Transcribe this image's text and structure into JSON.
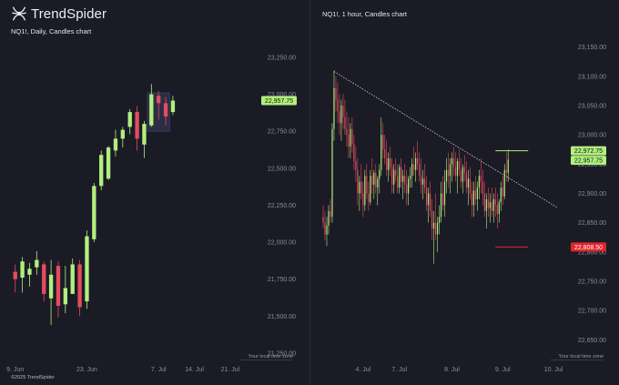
{
  "brand": {
    "name": "TrendSpider",
    "logo_icon": "trendspider-spider-logo"
  },
  "footer": {
    "copyright": "©2025 TrendSpider"
  },
  "colors": {
    "background": "#1b1b26",
    "bull": "#b2ef7e",
    "bear": "#e34d5e",
    "badge_green": "#b2ef7e",
    "badge_red": "#e0262b",
    "trendline": "#d0d0d8",
    "selection_box": "#3a3d5c"
  },
  "chart_data": [
    {
      "type": "candlestick",
      "title": "NQ1!, Daily, Candles chart",
      "timezone_label": "Your local time zone",
      "y_ticks": [
        "23,250.00",
        "23,000.00",
        "22,750.00",
        "22,500.00",
        "22,250.00",
        "22,000.00",
        "21,750.00",
        "21,500.00",
        "21,250.00"
      ],
      "y_tick_values": [
        23250,
        23000,
        22750,
        22500,
        22250,
        22000,
        21750,
        21500,
        21250
      ],
      "ylim": [
        21225,
        23330
      ],
      "x_ticks": [
        "9. Jun",
        "23. Jun",
        "7. Jul",
        "14. Jul",
        "21. Jul"
      ],
      "x_tick_index": [
        0,
        10,
        20,
        25,
        30
      ],
      "xlim": [
        -0.6,
        34.2
      ],
      "last_price_label": "22,957.75",
      "last_price": 22957.75,
      "selection_range": [
        19,
        21
      ],
      "candles": [
        {
          "o": 21800,
          "h": 21850,
          "l": 21660,
          "c": 21750
        },
        {
          "o": 21760,
          "h": 21900,
          "l": 21660,
          "c": 21870
        },
        {
          "o": 21780,
          "h": 21860,
          "l": 21700,
          "c": 21820
        },
        {
          "o": 21830,
          "h": 21940,
          "l": 21780,
          "c": 21880
        },
        {
          "o": 21850,
          "h": 21870,
          "l": 21600,
          "c": 21650
        },
        {
          "o": 21620,
          "h": 21880,
          "l": 21440,
          "c": 21780
        },
        {
          "o": 21840,
          "h": 21870,
          "l": 21490,
          "c": 21570
        },
        {
          "o": 21580,
          "h": 21840,
          "l": 21520,
          "c": 21690
        },
        {
          "o": 21650,
          "h": 21890,
          "l": 21650,
          "c": 21850
        },
        {
          "o": 21850,
          "h": 21880,
          "l": 21500,
          "c": 21560
        },
        {
          "o": 21600,
          "h": 22080,
          "l": 21550,
          "c": 22040
        },
        {
          "o": 22020,
          "h": 22400,
          "l": 22000,
          "c": 22380
        },
        {
          "o": 22380,
          "h": 22620,
          "l": 22350,
          "c": 22590
        },
        {
          "o": 22430,
          "h": 22650,
          "l": 22420,
          "c": 22640
        },
        {
          "o": 22620,
          "h": 22760,
          "l": 22580,
          "c": 22700
        },
        {
          "o": 22700,
          "h": 22780,
          "l": 22640,
          "c": 22760
        },
        {
          "o": 22780,
          "h": 22900,
          "l": 22730,
          "c": 22880
        },
        {
          "o": 22880,
          "h": 22920,
          "l": 22620,
          "c": 22700
        },
        {
          "o": 22660,
          "h": 22820,
          "l": 22570,
          "c": 22800
        },
        {
          "o": 22790,
          "h": 23070,
          "l": 22780,
          "c": 23000
        },
        {
          "o": 22990,
          "h": 23020,
          "l": 22830,
          "c": 22940
        },
        {
          "o": 22940,
          "h": 22980,
          "l": 22790,
          "c": 22850
        },
        {
          "o": 22880,
          "h": 22990,
          "l": 22860,
          "c": 22957.75
        }
      ]
    },
    {
      "type": "candlestick",
      "title": "NQ1!, 1 hour, Candles chart",
      "timezone_label": "Your local time zone",
      "y_ticks": [
        "23,150.00",
        "23,100.00",
        "23,050.00",
        "23,000.00",
        "22,950.00",
        "22,900.00",
        "22,850.00",
        "22,800.00",
        "22,750.00",
        "22,700.00",
        "22,650.00"
      ],
      "y_tick_values": [
        23150,
        23100,
        23050,
        23000,
        22950,
        22900,
        22850,
        22800,
        22750,
        22700,
        22650
      ],
      "ylim": [
        22632,
        23168
      ],
      "x_ticks": [
        "4. Jul",
        "7. Jul",
        "8. Jul",
        "9. Jul",
        "10. Jul"
      ],
      "x_tick_index": [
        22,
        42,
        71,
        99,
        127
      ],
      "xlim": [
        -0.5,
        135
      ],
      "price_labels": [
        {
          "label": "22,972.75",
          "value": 22972.75,
          "color": "badge_green"
        },
        {
          "label": "22,957.75",
          "value": 22957.75,
          "color": "badge_green"
        },
        {
          "label": "22,808.50",
          "value": 22808.5,
          "color": "badge_red"
        }
      ],
      "levels": [
        {
          "value": 22972.75,
          "from_index": 95,
          "to_index": 113,
          "color": "badge_green"
        },
        {
          "value": 22808.5,
          "from_index": 95,
          "to_index": 113,
          "color": "badge_red"
        }
      ],
      "trendline": {
        "from": [
          6,
          23108
        ],
        "to": [
          129,
          22876
        ]
      },
      "candles": [
        {
          "o": 22860,
          "h": 22880,
          "l": 22840,
          "c": 22850
        },
        {
          "o": 22850,
          "h": 22870,
          "l": 22820,
          "c": 22830
        },
        {
          "o": 22830,
          "h": 22860,
          "l": 22810,
          "c": 22845
        },
        {
          "o": 22845,
          "h": 22880,
          "l": 22830,
          "c": 22870
        },
        {
          "o": 22870,
          "h": 22890,
          "l": 22850,
          "c": 22860
        },
        {
          "o": 22860,
          "h": 23020,
          "l": 22850,
          "c": 23010
        },
        {
          "o": 23010,
          "h": 23110,
          "l": 22990,
          "c": 23080
        },
        {
          "o": 23080,
          "h": 23100,
          "l": 23040,
          "c": 23060
        },
        {
          "o": 23060,
          "h": 23090,
          "l": 23020,
          "c": 23040
        },
        {
          "o": 23040,
          "h": 23070,
          "l": 23000,
          "c": 23020
        },
        {
          "o": 23020,
          "h": 23060,
          "l": 22990,
          "c": 23050
        },
        {
          "o": 23050,
          "h": 23070,
          "l": 23010,
          "c": 23030
        },
        {
          "o": 23030,
          "h": 23060,
          "l": 23000,
          "c": 23010
        },
        {
          "o": 23010,
          "h": 23040,
          "l": 22980,
          "c": 23000
        },
        {
          "o": 23000,
          "h": 23030,
          "l": 22960,
          "c": 22980
        },
        {
          "o": 22980,
          "h": 23020,
          "l": 22960,
          "c": 23010
        },
        {
          "o": 23010,
          "h": 23030,
          "l": 22970,
          "c": 22985
        },
        {
          "o": 22985,
          "h": 23000,
          "l": 22940,
          "c": 22955
        },
        {
          "o": 22955,
          "h": 22980,
          "l": 22920,
          "c": 22940
        },
        {
          "o": 22940,
          "h": 22960,
          "l": 22880,
          "c": 22900
        },
        {
          "o": 22900,
          "h": 22930,
          "l": 22870,
          "c": 22920
        },
        {
          "o": 22920,
          "h": 22950,
          "l": 22890,
          "c": 22900
        },
        {
          "o": 22900,
          "h": 22920,
          "l": 22860,
          "c": 22880
        },
        {
          "o": 22880,
          "h": 22940,
          "l": 22870,
          "c": 22930
        },
        {
          "o": 22930,
          "h": 22950,
          "l": 22890,
          "c": 22900
        },
        {
          "o": 22900,
          "h": 22920,
          "l": 22870,
          "c": 22885
        },
        {
          "o": 22885,
          "h": 22940,
          "l": 22880,
          "c": 22930
        },
        {
          "o": 22930,
          "h": 22960,
          "l": 22900,
          "c": 22915
        },
        {
          "o": 22915,
          "h": 22940,
          "l": 22890,
          "c": 22935
        },
        {
          "o": 22935,
          "h": 22950,
          "l": 22900,
          "c": 22910
        },
        {
          "o": 22910,
          "h": 22930,
          "l": 22880,
          "c": 22925
        },
        {
          "o": 22925,
          "h": 22950,
          "l": 22900,
          "c": 22940
        },
        {
          "o": 22940,
          "h": 23030,
          "l": 22930,
          "c": 23000
        },
        {
          "o": 23000,
          "h": 23020,
          "l": 22960,
          "c": 22975
        },
        {
          "o": 22975,
          "h": 23000,
          "l": 22950,
          "c": 22960
        },
        {
          "o": 22960,
          "h": 22990,
          "l": 22930,
          "c": 22940
        },
        {
          "o": 22940,
          "h": 22970,
          "l": 22920,
          "c": 22960
        },
        {
          "o": 22960,
          "h": 22980,
          "l": 22930,
          "c": 22945
        },
        {
          "o": 22945,
          "h": 22960,
          "l": 22900,
          "c": 22915
        },
        {
          "o": 22915,
          "h": 22950,
          "l": 22900,
          "c": 22940
        },
        {
          "o": 22940,
          "h": 22960,
          "l": 22920,
          "c": 22930
        },
        {
          "o": 22930,
          "h": 22950,
          "l": 22900,
          "c": 22910
        },
        {
          "o": 22910,
          "h": 22950,
          "l": 22900,
          "c": 22945
        },
        {
          "o": 22945,
          "h": 22960,
          "l": 22910,
          "c": 22920
        },
        {
          "o": 22920,
          "h": 22940,
          "l": 22890,
          "c": 22930
        },
        {
          "o": 22930,
          "h": 22950,
          "l": 22900,
          "c": 22915
        },
        {
          "o": 22915,
          "h": 22940,
          "l": 22880,
          "c": 22900
        },
        {
          "o": 22900,
          "h": 22930,
          "l": 22880,
          "c": 22925
        },
        {
          "o": 22925,
          "h": 22945,
          "l": 22910,
          "c": 22930
        },
        {
          "o": 22930,
          "h": 22960,
          "l": 22910,
          "c": 22950
        },
        {
          "o": 22950,
          "h": 22980,
          "l": 22930,
          "c": 22940
        },
        {
          "o": 22940,
          "h": 22970,
          "l": 22920,
          "c": 22960
        },
        {
          "o": 22960,
          "h": 22990,
          "l": 22940,
          "c": 22950
        },
        {
          "o": 22950,
          "h": 22970,
          "l": 22920,
          "c": 22930
        },
        {
          "o": 22930,
          "h": 22960,
          "l": 22900,
          "c": 22915
        },
        {
          "o": 22915,
          "h": 22940,
          "l": 22890,
          "c": 22925
        },
        {
          "o": 22925,
          "h": 22950,
          "l": 22900,
          "c": 22910
        },
        {
          "o": 22910,
          "h": 22930,
          "l": 22870,
          "c": 22880
        },
        {
          "o": 22880,
          "h": 22910,
          "l": 22850,
          "c": 22900
        },
        {
          "o": 22900,
          "h": 22920,
          "l": 22860,
          "c": 22870
        },
        {
          "o": 22870,
          "h": 22890,
          "l": 22820,
          "c": 22840
        },
        {
          "o": 22840,
          "h": 22870,
          "l": 22780,
          "c": 22850
        },
        {
          "o": 22850,
          "h": 22900,
          "l": 22820,
          "c": 22830
        },
        {
          "o": 22830,
          "h": 22860,
          "l": 22800,
          "c": 22850
        },
        {
          "o": 22850,
          "h": 22880,
          "l": 22830,
          "c": 22860
        },
        {
          "o": 22860,
          "h": 22920,
          "l": 22850,
          "c": 22900
        },
        {
          "o": 22900,
          "h": 22930,
          "l": 22870,
          "c": 22880
        },
        {
          "o": 22880,
          "h": 22940,
          "l": 22860,
          "c": 22920
        },
        {
          "o": 22920,
          "h": 22960,
          "l": 22900,
          "c": 22940
        },
        {
          "o": 22940,
          "h": 22970,
          "l": 22910,
          "c": 22930
        },
        {
          "o": 22930,
          "h": 22960,
          "l": 22900,
          "c": 22950
        },
        {
          "o": 22950,
          "h": 22970,
          "l": 22920,
          "c": 22960
        },
        {
          "o": 22960,
          "h": 22980,
          "l": 22930,
          "c": 22945
        },
        {
          "o": 22945,
          "h": 22970,
          "l": 22920,
          "c": 22930
        },
        {
          "o": 22930,
          "h": 22960,
          "l": 22900,
          "c": 22955
        },
        {
          "o": 22955,
          "h": 22975,
          "l": 22930,
          "c": 22940
        },
        {
          "o": 22940,
          "h": 22960,
          "l": 22910,
          "c": 22920
        },
        {
          "o": 22920,
          "h": 22950,
          "l": 22900,
          "c": 22945
        },
        {
          "o": 22945,
          "h": 22965,
          "l": 22920,
          "c": 22935
        },
        {
          "o": 22935,
          "h": 22955,
          "l": 22900,
          "c": 22910
        },
        {
          "o": 22910,
          "h": 22940,
          "l": 22880,
          "c": 22925
        },
        {
          "o": 22925,
          "h": 22945,
          "l": 22890,
          "c": 22900
        },
        {
          "o": 22900,
          "h": 22920,
          "l": 22860,
          "c": 22880
        },
        {
          "o": 22880,
          "h": 22920,
          "l": 22860,
          "c": 22905
        },
        {
          "o": 22905,
          "h": 22930,
          "l": 22880,
          "c": 22890
        },
        {
          "o": 22890,
          "h": 22920,
          "l": 22870,
          "c": 22910
        },
        {
          "o": 22910,
          "h": 22940,
          "l": 22890,
          "c": 22930
        },
        {
          "o": 22930,
          "h": 22960,
          "l": 22900,
          "c": 22920
        },
        {
          "o": 22920,
          "h": 22940,
          "l": 22880,
          "c": 22900
        },
        {
          "o": 22900,
          "h": 22920,
          "l": 22860,
          "c": 22870
        },
        {
          "o": 22870,
          "h": 22900,
          "l": 22840,
          "c": 22890
        },
        {
          "o": 22890,
          "h": 22910,
          "l": 22860,
          "c": 22875
        },
        {
          "o": 22875,
          "h": 22900,
          "l": 22850,
          "c": 22885
        },
        {
          "o": 22885,
          "h": 22910,
          "l": 22860,
          "c": 22870
        },
        {
          "o": 22870,
          "h": 22900,
          "l": 22850,
          "c": 22890
        },
        {
          "o": 22890,
          "h": 22910,
          "l": 22860,
          "c": 22880
        },
        {
          "o": 22880,
          "h": 22900,
          "l": 22840,
          "c": 22865
        },
        {
          "o": 22865,
          "h": 22890,
          "l": 22850,
          "c": 22885
        },
        {
          "o": 22885,
          "h": 22920,
          "l": 22870,
          "c": 22910
        },
        {
          "o": 22910,
          "h": 22930,
          "l": 22880,
          "c": 22895
        },
        {
          "o": 22895,
          "h": 22950,
          "l": 22890,
          "c": 22940
        },
        {
          "o": 22940,
          "h": 22970,
          "l": 22920,
          "c": 22935
        },
        {
          "o": 22935,
          "h": 22975,
          "l": 22920,
          "c": 22957.75
        }
      ]
    }
  ]
}
